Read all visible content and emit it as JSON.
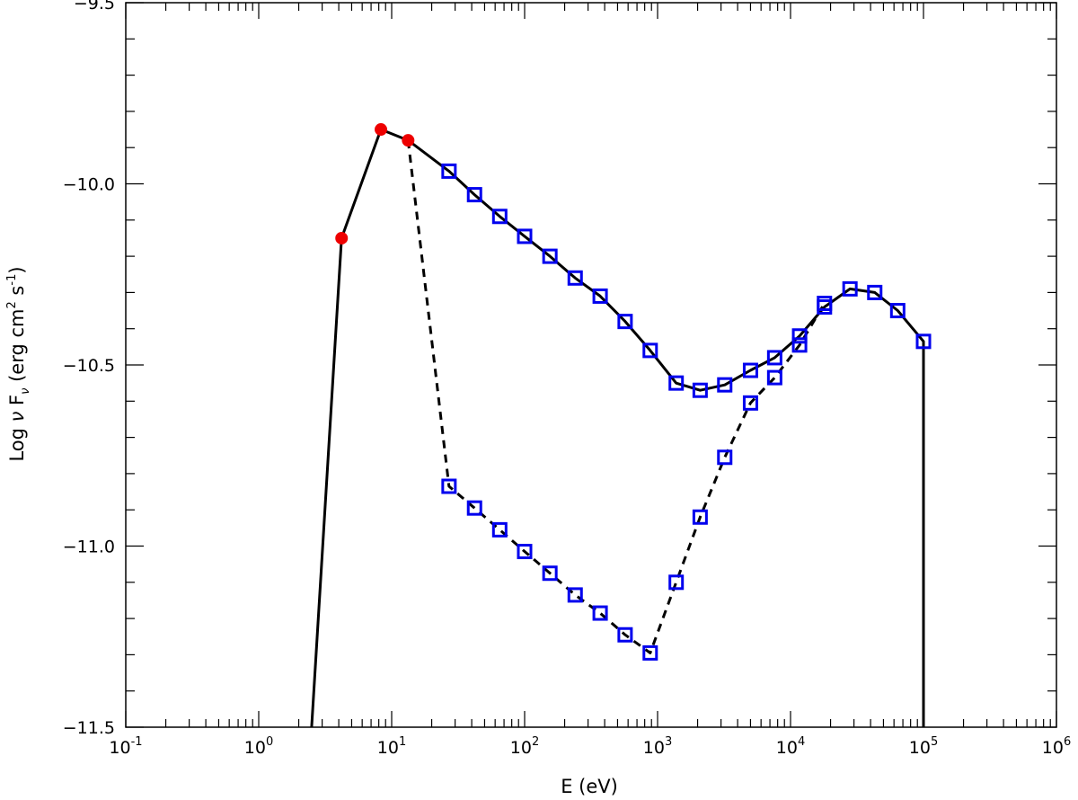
{
  "chart_data": {
    "type": "line",
    "xscale": "log",
    "xlabel": "E (eV)",
    "ylabel": "Log ν F_ν (erg cm^2 s^-1)",
    "ylabel_parts": {
      "pre": "Log ",
      "nu": "ν",
      "F": " F",
      "sub": "ν",
      "units_open": " (erg cm",
      "sup2": "2",
      "s": " s",
      "supm1": "-1",
      "close": ")"
    },
    "xlim": [
      0.1,
      1000000
    ],
    "ylim": [
      -11.5,
      -9.5
    ],
    "x_ticks": [
      {
        "base": "10",
        "exp": "-1",
        "value": 0.1
      },
      {
        "base": "10",
        "exp": "0",
        "value": 1
      },
      {
        "base": "10",
        "exp": "1",
        "value": 10
      },
      {
        "base": "10",
        "exp": "2",
        "value": 100
      },
      {
        "base": "10",
        "exp": "3",
        "value": 1000
      },
      {
        "base": "10",
        "exp": "4",
        "value": 10000
      },
      {
        "base": "10",
        "exp": "5",
        "value": 100000
      },
      {
        "base": "10",
        "exp": "6",
        "value": 1000000
      }
    ],
    "y_ticks": [
      {
        "label": "−9.5",
        "value": -9.5
      },
      {
        "label": "−10.0",
        "value": -10.0
      },
      {
        "label": "−10.5",
        "value": -10.5
      },
      {
        "label": "−11.0",
        "value": -11.0
      },
      {
        "label": "−11.5",
        "value": -11.5
      }
    ],
    "grid": false,
    "colors": {
      "line": "#000000",
      "square": "#0000ee",
      "circle": "#ee0000"
    },
    "series": [
      {
        "style": "solid",
        "marker": "circle",
        "x": [
          2.5,
          4.2,
          8.3,
          13.3
        ],
        "y": [
          -11.5,
          -10.15,
          -9.85,
          -9.88
        ]
      },
      {
        "style": "solid",
        "marker": "square",
        "x": [
          13.3,
          27,
          42,
          65,
          100,
          155,
          240,
          370,
          570,
          880,
          1380,
          2090,
          3200,
          5000,
          7600,
          11700,
          18000,
          28000,
          43000,
          64000,
          100000,
          100000
        ],
        "y": [
          -9.88,
          -9.965,
          -10.03,
          -10.09,
          -10.145,
          -10.2,
          -10.26,
          -10.31,
          -10.38,
          -10.46,
          -10.55,
          -10.57,
          -10.555,
          -10.515,
          -10.48,
          -10.42,
          -10.34,
          -10.29,
          -10.3,
          -10.35,
          -10.435,
          -11.5
        ]
      },
      {
        "style": "dashed",
        "marker": "square",
        "x": [
          13.3,
          27,
          42,
          65,
          100,
          155,
          240,
          370,
          570,
          880,
          1380,
          2090,
          3200,
          5000,
          7600,
          11700,
          18000
        ],
        "y": [
          -9.88,
          -10.835,
          -10.895,
          -10.955,
          -11.015,
          -11.075,
          -11.135,
          -11.185,
          -11.245,
          -11.295,
          -11.1,
          -10.92,
          -10.755,
          -10.605,
          -10.535,
          -10.445,
          -10.33
        ]
      }
    ]
  }
}
